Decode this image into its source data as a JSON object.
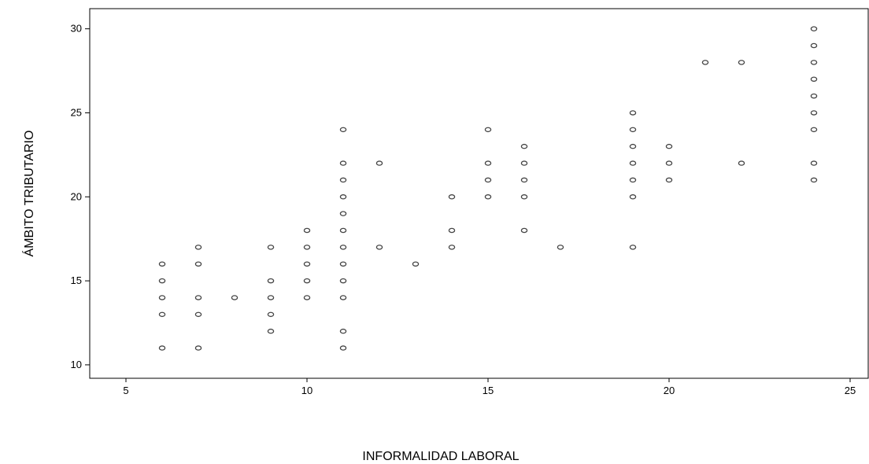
{
  "chart_data": {
    "type": "scatter",
    "title": "",
    "xlabel": "INFORMALIDAD LABORAL",
    "ylabel": "ÁMBITO TRIBUTARIO",
    "xlim": [
      4,
      25.5
    ],
    "ylim": [
      9.2,
      31.2
    ],
    "x_ticks": [
      5,
      10,
      15,
      20,
      25
    ],
    "y_ticks": [
      10,
      15,
      20,
      25,
      30
    ],
    "grid": false,
    "marker": "hollow-circle",
    "marker_color": "#444444",
    "points": [
      [
        6,
        16
      ],
      [
        6,
        15
      ],
      [
        6,
        14
      ],
      [
        6,
        13
      ],
      [
        6,
        11
      ],
      [
        7,
        17
      ],
      [
        7,
        16
      ],
      [
        7,
        14
      ],
      [
        7,
        13
      ],
      [
        7,
        11
      ],
      [
        8,
        14
      ],
      [
        9,
        17
      ],
      [
        9,
        15
      ],
      [
        9,
        14
      ],
      [
        9,
        13
      ],
      [
        9,
        12
      ],
      [
        10,
        18
      ],
      [
        10,
        17
      ],
      [
        10,
        16
      ],
      [
        10,
        15
      ],
      [
        10,
        14
      ],
      [
        11,
        24
      ],
      [
        11,
        22
      ],
      [
        11,
        21
      ],
      [
        11,
        20
      ],
      [
        11,
        19
      ],
      [
        11,
        18
      ],
      [
        11,
        17
      ],
      [
        11,
        16
      ],
      [
        11,
        15
      ],
      [
        11,
        14
      ],
      [
        11,
        12
      ],
      [
        11,
        11
      ],
      [
        12,
        22
      ],
      [
        12,
        17
      ],
      [
        13,
        16
      ],
      [
        14,
        20
      ],
      [
        14,
        18
      ],
      [
        14,
        17
      ],
      [
        15,
        24
      ],
      [
        15,
        22
      ],
      [
        15,
        21
      ],
      [
        15,
        20
      ],
      [
        16,
        23
      ],
      [
        16,
        22
      ],
      [
        16,
        21
      ],
      [
        16,
        20
      ],
      [
        16,
        18
      ],
      [
        17,
        17
      ],
      [
        19,
        25
      ],
      [
        19,
        24
      ],
      [
        19,
        23
      ],
      [
        19,
        22
      ],
      [
        19,
        21
      ],
      [
        19,
        20
      ],
      [
        19,
        17
      ],
      [
        20,
        23
      ],
      [
        20,
        22
      ],
      [
        20,
        21
      ],
      [
        21,
        28
      ],
      [
        22,
        28
      ],
      [
        22,
        22
      ],
      [
        24,
        30
      ],
      [
        24,
        29
      ],
      [
        24,
        28
      ],
      [
        24,
        27
      ],
      [
        24,
        26
      ],
      [
        24,
        25
      ],
      [
        24,
        24
      ],
      [
        24,
        22
      ],
      [
        24,
        21
      ]
    ]
  }
}
